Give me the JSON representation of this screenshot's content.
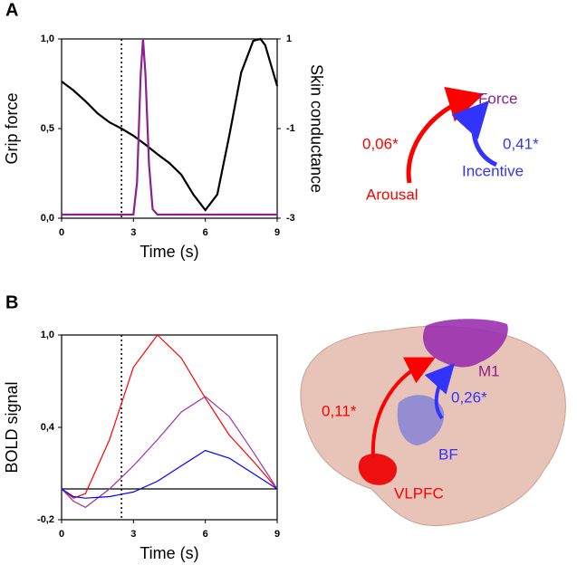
{
  "chart_data": [
    {
      "type": "line",
      "xlabel": "Time (s)",
      "ylabel": "Grip force",
      "y2label": "Skin conductance",
      "xlim": [
        0,
        9
      ],
      "xticks": [
        0,
        3,
        6,
        9
      ],
      "ylim": [
        0,
        1
      ],
      "yticks": [
        {
          "value": 0,
          "label": "0,0"
        },
        {
          "value": 0.5,
          "label": "0,5"
        },
        {
          "value": 1,
          "label": "1,0"
        }
      ],
      "y2lim": [
        -3,
        1
      ],
      "y2ticks": [
        -3,
        -1,
        1
      ],
      "vline": 2.5,
      "series": [
        {
          "color": "#000000",
          "axis": "y2",
          "x": [
            0,
            0.5,
            1,
            1.5,
            2,
            2.5,
            3,
            3.5,
            4,
            4.5,
            5,
            5.5,
            6,
            6.5,
            7,
            7.5,
            8,
            8.3,
            8.5,
            9
          ],
          "values": [
            0.05,
            -0.15,
            -0.39,
            -0.66,
            -0.86,
            -1.0,
            -1.16,
            -1.36,
            -1.57,
            -1.77,
            -2.03,
            -2.47,
            -2.82,
            -2.47,
            -1.16,
            0.25,
            0.96,
            1.0,
            0.86,
            -0.05
          ]
        },
        {
          "color": "#8e1f8e",
          "x": [
            0,
            3.0,
            3.15,
            3.3,
            3.4,
            3.5,
            3.65,
            3.8,
            4.0,
            9
          ],
          "values": [
            0.02,
            0.02,
            0.2,
            0.8,
            1.0,
            0.8,
            0.3,
            0.05,
            0.02,
            0.02
          ]
        }
      ]
    },
    {
      "type": "line",
      "xlabel": "Time (s)",
      "ylabel": "BOLD signal",
      "xlim": [
        0,
        9
      ],
      "xticks": [
        0,
        3,
        6,
        9
      ],
      "ylim": [
        -0.2,
        1
      ],
      "yticks": [
        {
          "value": -0.2,
          "label": "-0,2"
        },
        {
          "value": 0.4,
          "label": "0,4"
        },
        {
          "value": 1,
          "label": "1,0"
        }
      ],
      "vline": 2.5,
      "hline": 0,
      "series": [
        {
          "color": "#ff0000",
          "x": [
            0,
            0.5,
            1,
            2,
            3,
            4,
            5,
            6,
            7,
            8,
            9
          ],
          "values": [
            0,
            -0.06,
            -0.03,
            0.32,
            0.79,
            1.0,
            0.85,
            0.59,
            0.35,
            0.18,
            0
          ]
        },
        {
          "color": "#9933aa",
          "x": [
            0,
            0.5,
            1,
            2,
            3,
            4,
            5,
            6,
            7,
            8,
            9
          ],
          "values": [
            0,
            -0.08,
            -0.12,
            0,
            0.15,
            0.32,
            0.5,
            0.6,
            0.47,
            0.24,
            0
          ]
        },
        {
          "color": "#0000ff",
          "x": [
            0,
            0.5,
            1,
            2,
            3,
            4,
            5,
            6,
            7,
            8,
            9
          ],
          "values": [
            0,
            -0.05,
            -0.06,
            -0.05,
            -0.02,
            0.05,
            0.15,
            0.25,
            0.2,
            0.1,
            0
          ]
        }
      ]
    }
  ],
  "figure": {
    "panels": [
      "A",
      "B"
    ],
    "diagram": {
      "force": "Force",
      "arousal": "Arousal",
      "incentive": "Incentive",
      "arousal_weight": "0,06*",
      "incentive_weight": "0,41*"
    },
    "brain": {
      "m1": "M1",
      "bf": "BF",
      "vlpfc": "VLPFC",
      "vlpfc_weight": "0,11*",
      "bf_weight": "0,26*"
    }
  }
}
